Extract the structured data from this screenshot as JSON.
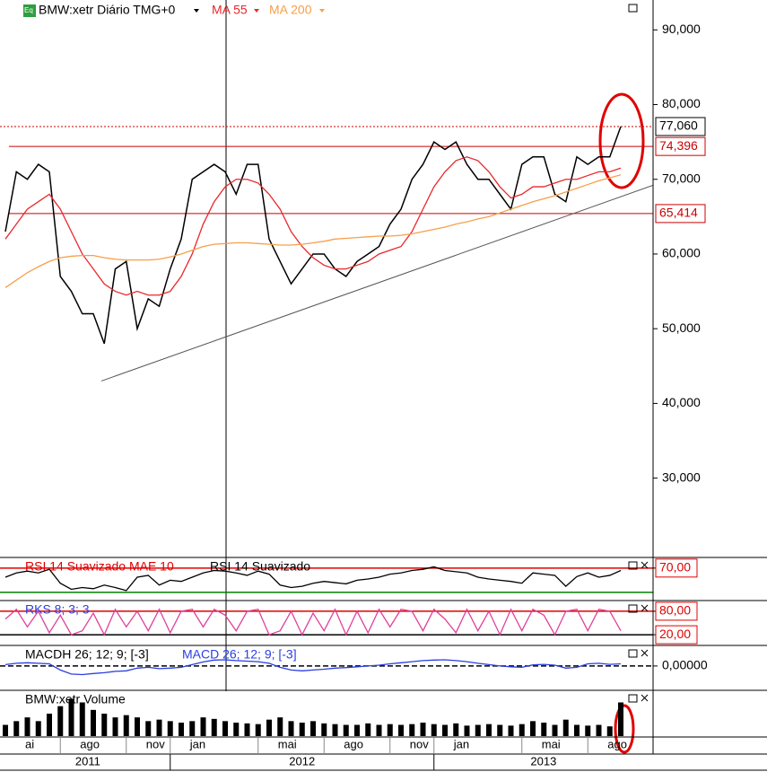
{
  "chart_data": [
    {
      "type": "line",
      "categories": [
        "ai",
        null,
        null,
        null,
        null,
        "ago",
        null,
        null,
        null,
        null,
        null,
        "nov",
        null,
        null,
        null,
        "jan",
        null,
        null,
        null,
        null,
        null,
        null,
        null,
        "mai",
        null,
        null,
        null,
        null,
        null,
        "ago",
        null,
        null,
        null,
        null,
        null,
        "nov",
        null,
        null,
        null,
        "jan",
        null,
        null,
        null,
        null,
        null,
        null,
        null,
        "mai",
        null,
        null,
        null,
        null,
        null,
        "ago",
        null,
        null,
        null
      ],
      "years": [
        "2011",
        null,
        null,
        null,
        null,
        null,
        null,
        null,
        null,
        null,
        null,
        null,
        null,
        null,
        null,
        "2012",
        null,
        null,
        null,
        null,
        null,
        null,
        null,
        null,
        null,
        null,
        null,
        null,
        null,
        null,
        null,
        null,
        null,
        null,
        null,
        null,
        null,
        null,
        null,
        "2013",
        null,
        null,
        null,
        null,
        null,
        null,
        null,
        null,
        null,
        null,
        null,
        null,
        null,
        null,
        null,
        null,
        null
      ],
      "series": [
        {
          "name": "BMW:xetr Diário TMG+0",
          "color": "#000000",
          "values": [
            63,
            71,
            70,
            72,
            71,
            57,
            55,
            52,
            52,
            48,
            58,
            59,
            50,
            54,
            53,
            58,
            62,
            70,
            71,
            72,
            71,
            68,
            72,
            72,
            62,
            59,
            56,
            58,
            60,
            60,
            58,
            57,
            59,
            60,
            61,
            64,
            66,
            70,
            72,
            75,
            74,
            75,
            72,
            70,
            70,
            68,
            66,
            72,
            73,
            73,
            68,
            67,
            73,
            72,
            73,
            73,
            77.06
          ]
        },
        {
          "name": "MA 55",
          "color": "#e8282b",
          "values": [
            62,
            64,
            66,
            67,
            68,
            66,
            63,
            60,
            58,
            56,
            55,
            54.5,
            55,
            54.5,
            54.5,
            55,
            57,
            60,
            64,
            67,
            69,
            70,
            70,
            69.5,
            68,
            66,
            63,
            61,
            59.5,
            58.5,
            58,
            58,
            58.5,
            59,
            60,
            60.5,
            61,
            63,
            66,
            69,
            71,
            72.5,
            73,
            72.5,
            71,
            69,
            67.5,
            68,
            69,
            69,
            69.5,
            70,
            70,
            70.5,
            71,
            71,
            71.5
          ]
        },
        {
          "name": "MA 200",
          "color": "#f5a04a",
          "values": [
            55.5,
            56.5,
            57.5,
            58.3,
            59,
            59.5,
            59.7,
            59.8,
            59.8,
            59.5,
            59.3,
            59.2,
            59.2,
            59.2,
            59.3,
            59.6,
            60,
            60.5,
            61,
            61.3,
            61.4,
            61.5,
            61.5,
            61.4,
            61.3,
            61.2,
            61.2,
            61.3,
            61.5,
            61.7,
            62,
            62.1,
            62.2,
            62.3,
            62.4,
            62.4,
            62.5,
            62.7,
            63,
            63.3,
            63.6,
            64,
            64.3,
            64.7,
            65,
            65.5,
            66,
            66.5,
            67,
            67.4,
            67.8,
            68.3,
            68.8,
            69.3,
            69.8,
            70.2,
            70.6
          ]
        }
      ],
      "ylim": [
        19.5,
        94
      ],
      "yticks": [
        {
          "value": 30,
          "label": "30,000"
        },
        {
          "value": 40,
          "label": "40,000"
        },
        {
          "value": 50,
          "label": "50,000"
        },
        {
          "value": 60,
          "label": "60,000"
        },
        {
          "value": 70,
          "label": "70,000"
        },
        {
          "value": 80,
          "label": "80,000"
        },
        {
          "value": 90,
          "label": "90,000"
        }
      ],
      "levels": [
        {
          "value": 77.06,
          "label": "77,060",
          "color": "#000000",
          "dotted_color": "#cc0000"
        },
        {
          "value": 74.396,
          "label": "74,396",
          "color": "#cc0000"
        },
        {
          "value": 65.414,
          "label": "65,414",
          "color": "#cc0000"
        }
      ],
      "trendline": [
        43,
        69.2
      ]
    },
    {
      "type": "line",
      "title": "RSI 14 Suavizado MAE 10",
      "series": [
        {
          "name": "RSI 14 Suavizado",
          "color": "#000000",
          "values": [
            55,
            62,
            65,
            62,
            68,
            45,
            35,
            38,
            36,
            42,
            38,
            33,
            55,
            58,
            42,
            50,
            48,
            55,
            62,
            66,
            65,
            62,
            58,
            65,
            60,
            42,
            38,
            40,
            45,
            48,
            46,
            44,
            50,
            52,
            55,
            60,
            62,
            66,
            68,
            72,
            66,
            64,
            62,
            55,
            52,
            50,
            48,
            45,
            62,
            60,
            58,
            40,
            56,
            62,
            55,
            58,
            66
          ]
        }
      ],
      "ylim": [
        18,
        86
      ],
      "yticks": [
        {
          "value": 70,
          "label": "70,00"
        }
      ],
      "levels": [
        {
          "value": 70,
          "color": "#e00000"
        },
        {
          "value": 30,
          "color": "#008000"
        }
      ]
    },
    {
      "type": "line",
      "title": "RKS 8; 3; 3",
      "series": [
        {
          "name": "RKS",
          "color": "#e0409a",
          "values": [
            60,
            85,
            40,
            80,
            25,
            70,
            20,
            30,
            75,
            20,
            85,
            40,
            80,
            30,
            85,
            25,
            80,
            85,
            40,
            85,
            70,
            30,
            80,
            85,
            20,
            30,
            80,
            20,
            75,
            30,
            85,
            20,
            80,
            25,
            85,
            40,
            85,
            80,
            30,
            85,
            60,
            25,
            85,
            30,
            80,
            20,
            85,
            30,
            85,
            70,
            20,
            80,
            85,
            30,
            85,
            80,
            30
          ]
        }
      ],
      "ylim": [
        -5,
        105
      ],
      "yticks": [
        {
          "value": 20,
          "label": "20,00"
        },
        {
          "value": 80,
          "label": "80,00"
        }
      ],
      "levels": [
        {
          "value": 80,
          "color": "#e00000"
        },
        {
          "value": 20,
          "color": "#000000"
        }
      ]
    },
    {
      "type": "line",
      "title": "MACDH 26; 12; 9; [-3]",
      "series": [
        {
          "name": "MACD 26; 12; 9; [-3]",
          "color": "#2a3ee0",
          "values": [
            0.5,
            1,
            1.2,
            1,
            0.8,
            -1.5,
            -3,
            -3.2,
            -2.8,
            -2.5,
            -2,
            -1.8,
            -0.8,
            -0.5,
            -1,
            -0.8,
            -0.5,
            0.5,
            1.5,
            2.2,
            2.3,
            2,
            1.8,
            1.6,
            1,
            -0.5,
            -1.5,
            -1.8,
            -1.5,
            -1.2,
            -0.8,
            -0.6,
            -0.3,
            0,
            0.3,
            0.8,
            1.2,
            1.6,
            2,
            2.2,
            2.3,
            2,
            1.6,
            1,
            0.5,
            0,
            -0.3,
            -0.5,
            0.4,
            0.6,
            0.3,
            -0.8,
            -0.5,
            0.8,
            1,
            0.6,
            0.8
          ]
        }
      ],
      "ylim": [
        -8.7,
        7.3
      ],
      "yticks": [
        {
          "value": 0,
          "label": "0,00000"
        }
      ],
      "levels": [
        {
          "value": 0,
          "color": "#000000"
        }
      ]
    },
    {
      "type": "bar",
      "title": "BMW:xetr Volume",
      "color": "#000000",
      "values": [
        1.5,
        2,
        2.5,
        2,
        3,
        4,
        5,
        4.5,
        3.5,
        3,
        2.5,
        2.8,
        2.5,
        2,
        2.2,
        2,
        1.8,
        2,
        2.5,
        2.3,
        2,
        1.8,
        1.7,
        1.6,
        2.2,
        2.5,
        2,
        1.8,
        2,
        1.7,
        1.6,
        1.5,
        1.5,
        1.7,
        1.5,
        1.6,
        1.5,
        1.6,
        1.8,
        1.6,
        1.5,
        1.7,
        1.4,
        1.5,
        1.6,
        1.5,
        1.4,
        1.6,
        2,
        1.8,
        1.5,
        2.2,
        1.5,
        1.4,
        1.5,
        1.3,
        4.5
      ],
      "ylim": [
        0,
        6
      ]
    }
  ]
}
